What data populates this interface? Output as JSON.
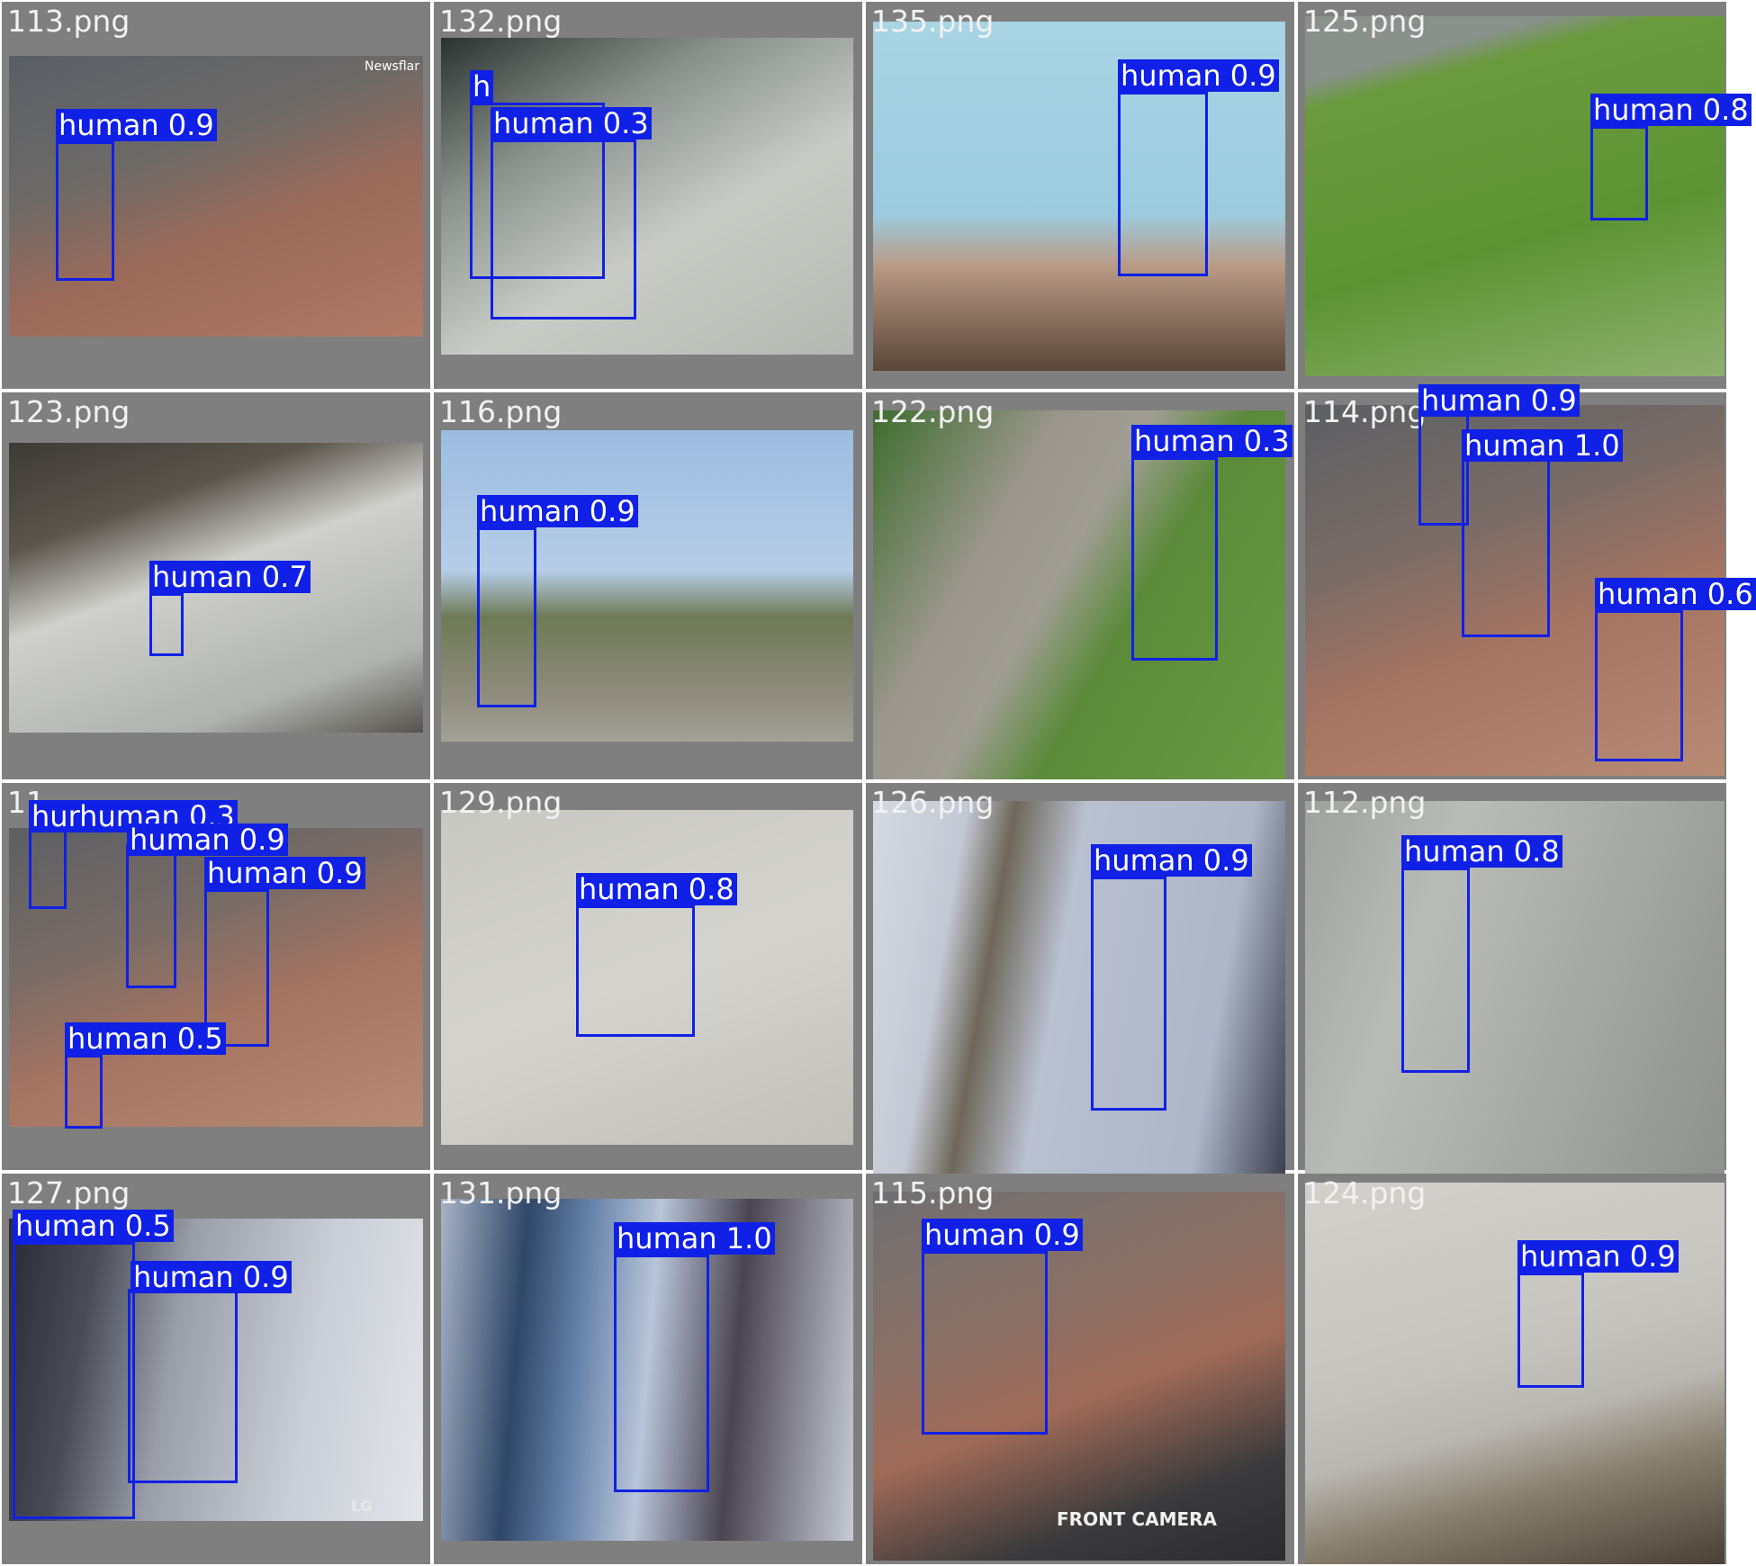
{
  "box_color": "#1020e6",
  "tiles": [
    {
      "name": "113.png",
      "detections": [
        {
          "label": "human",
          "score": "0.9"
        }
      ]
    },
    {
      "name": "132.png",
      "detections": [
        {
          "label": "human",
          "score": "0.3"
        },
        {
          "label": "h",
          "score": ""
        }
      ]
    },
    {
      "name": "135.png",
      "detections": [
        {
          "label": "human",
          "score": "0.9"
        }
      ]
    },
    {
      "name": "125.png",
      "detections": [
        {
          "label": "human",
          "score": "0.8"
        }
      ]
    },
    {
      "name": "123.png",
      "detections": [
        {
          "label": "human",
          "score": "0.7"
        }
      ]
    },
    {
      "name": "116.png",
      "detections": [
        {
          "label": "human",
          "score": "0.9"
        }
      ]
    },
    {
      "name": "122.png",
      "detections": [
        {
          "label": "human",
          "score": "0.3"
        }
      ]
    },
    {
      "name": "114.png",
      "detections": [
        {
          "label": "human",
          "score": "0.9"
        },
        {
          "label": "human",
          "score": "1.0"
        },
        {
          "label": "human",
          "score": "0.6"
        }
      ]
    },
    {
      "name": "11",
      "detections": [
        {
          "label": "hurhuman",
          "score": "0.3"
        },
        {
          "label": "human",
          "score": "0.9"
        },
        {
          "label": "human",
          "score": "0.9"
        },
        {
          "label": "human",
          "score": "0.5"
        }
      ]
    },
    {
      "name": "129.png",
      "detections": [
        {
          "label": "human",
          "score": "0.8"
        }
      ]
    },
    {
      "name": "126.png",
      "detections": [
        {
          "label": "human",
          "score": "0.9"
        }
      ]
    },
    {
      "name": "112.png",
      "detections": [
        {
          "label": "human",
          "score": "0.8"
        }
      ]
    },
    {
      "name": "127.png",
      "detections": [
        {
          "label": "human",
          "score": "0.5"
        },
        {
          "label": "human",
          "score": "0.9"
        }
      ]
    },
    {
      "name": "131.png",
      "detections": [
        {
          "label": "human",
          "score": "1.0"
        }
      ]
    },
    {
      "name": "115.png",
      "detections": [
        {
          "label": "human",
          "score": "0.9"
        }
      ]
    },
    {
      "name": "124.png",
      "detections": [
        {
          "label": "human",
          "score": "0.9"
        }
      ]
    }
  ],
  "overlays": {
    "newsflare": "Newsflar",
    "lg": "LG",
    "front_camera": "FRONT CAMERA"
  }
}
